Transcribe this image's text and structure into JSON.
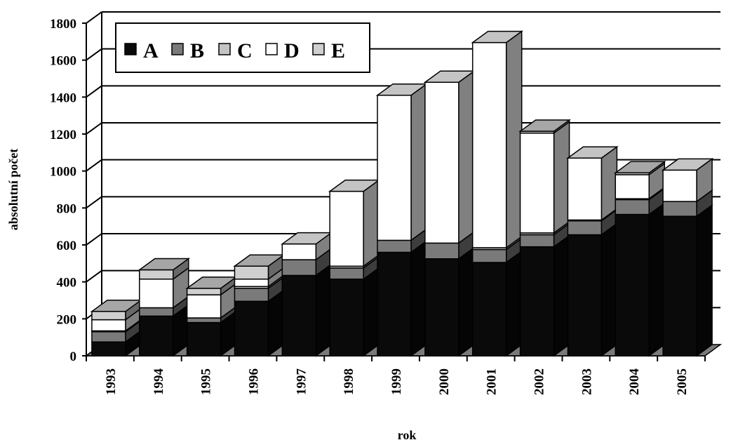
{
  "chart_data": {
    "type": "bar",
    "stacked": true,
    "three_d": true,
    "title": "",
    "xlabel": "rok",
    "ylabel": "absolutní počet",
    "ylim": [
      0,
      1800
    ],
    "yticks": [
      0,
      200,
      400,
      600,
      800,
      1000,
      1200,
      1400,
      1600,
      1800
    ],
    "grid": true,
    "legend_position": "top-left",
    "categories": [
      "1993",
      "1994",
      "1995",
      "1996",
      "1997",
      "1998",
      "1999",
      "2000",
      "2001",
      "2002",
      "2003",
      "2004",
      "2005"
    ],
    "series": [
      {
        "name": "A",
        "color": "#0a0a0a",
        "values": [
          75,
          215,
          180,
          295,
          435,
          415,
          560,
          525,
          505,
          590,
          655,
          765,
          755
        ]
      },
      {
        "name": "B",
        "color": "#7a7a7a",
        "values": [
          55,
          45,
          25,
          70,
          85,
          60,
          65,
          85,
          70,
          65,
          75,
          80,
          80
        ]
      },
      {
        "name": "C",
        "color": "#c4c4c4",
        "values": [
          5,
          0,
          0,
          10,
          0,
          10,
          0,
          0,
          10,
          10,
          5,
          5,
          0
        ]
      },
      {
        "name": "D",
        "color": "#ffffff",
        "values": [
          60,
          155,
          125,
          40,
          85,
          405,
          785,
          870,
          1110,
          540,
          335,
          130,
          170
        ]
      },
      {
        "name": "E",
        "color": "#cfcfcf",
        "values": [
          45,
          50,
          35,
          70,
          0,
          0,
          0,
          0,
          0,
          10,
          0,
          10,
          0
        ]
      }
    ]
  }
}
